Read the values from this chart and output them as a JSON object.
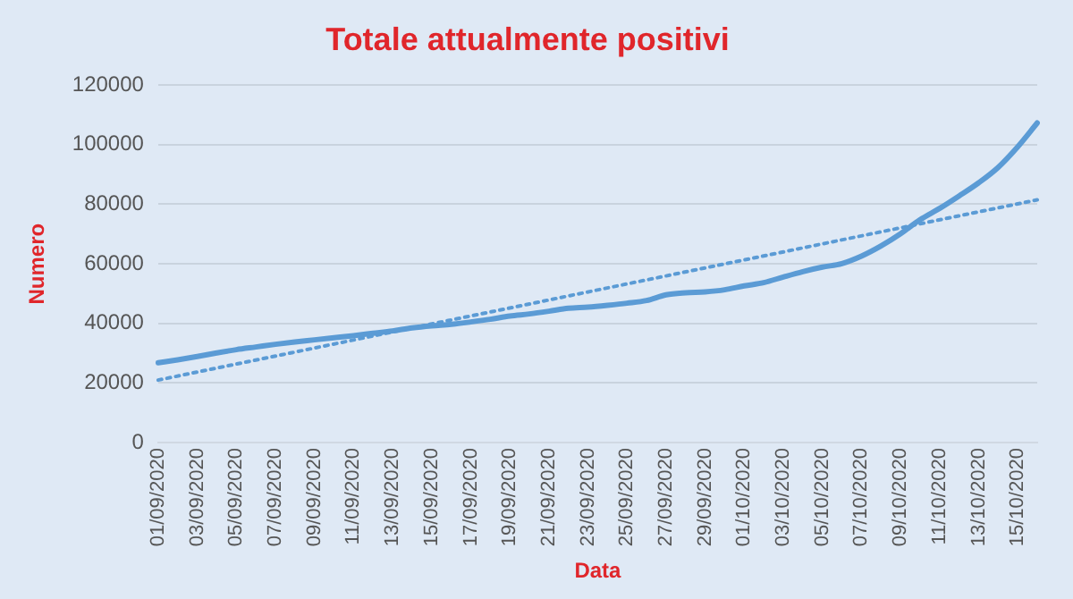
{
  "chart_data": {
    "type": "line",
    "title": "Totale attualmente positivi",
    "xlabel": "Data",
    "ylabel": "Numero",
    "categories": [
      "01/09/2020",
      null,
      "03/09/2020",
      null,
      "05/09/2020",
      null,
      "07/09/2020",
      null,
      "09/09/2020",
      null,
      "11/09/2020",
      null,
      "13/09/2020",
      null,
      "15/09/2020",
      null,
      "17/09/2020",
      null,
      "19/09/2020",
      null,
      "21/09/2020",
      null,
      "23/09/2020",
      null,
      "25/09/2020",
      null,
      "27/09/2020",
      null,
      "29/09/2020",
      null,
      "01/10/2020",
      null,
      "03/10/2020",
      null,
      "05/10/2020",
      null,
      "07/10/2020",
      null,
      "09/10/2020",
      null,
      "11/10/2020",
      null,
      "13/10/2020",
      null,
      "15/10/2020",
      null
    ],
    "series": [
      {
        "type": "line",
        "color": "#5b9bd5",
        "line_style": "solid",
        "values": [
          26800,
          27800,
          28900,
          30100,
          31200,
          32100,
          33000,
          33800,
          34500,
          35200,
          35900,
          36700,
          37500,
          38500,
          39200,
          39700,
          40500,
          41400,
          42500,
          43200,
          44100,
          45100,
          45500,
          46100,
          46800,
          47700,
          49600,
          50300,
          50600,
          51300,
          52600,
          53700,
          55600,
          57400,
          58900,
          60100,
          62600,
          66000,
          70100,
          74800,
          78600,
          82800,
          87200,
          92400,
          99300,
          107300
        ]
      },
      {
        "type": "line",
        "color": "#5b9bd5",
        "line_style": "dotted",
        "values": [
          21000,
          null,
          null,
          null,
          null,
          null,
          null,
          null,
          null,
          null,
          null,
          null,
          null,
          null,
          null,
          null,
          null,
          null,
          null,
          null,
          null,
          null,
          null,
          null,
          null,
          null,
          null,
          null,
          null,
          null,
          null,
          null,
          null,
          null,
          null,
          null,
          null,
          null,
          null,
          null,
          null,
          null,
          null,
          null,
          null,
          81500
        ]
      }
    ],
    "ylim": [
      0,
      120000
    ],
    "yticks": [
      0,
      20000,
      40000,
      60000,
      80000,
      100000,
      120000
    ],
    "grid": "y",
    "legend": false,
    "marker": "none"
  }
}
